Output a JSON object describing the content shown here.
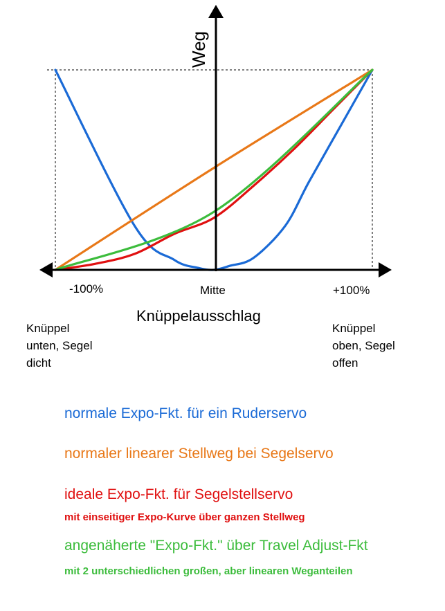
{
  "axes": {
    "y_label": "Weg",
    "x_label": "Knüppelausschlag",
    "x_min_label": "-100%",
    "x_mid_label": "Mitte",
    "x_max_label": "+100%"
  },
  "notes": {
    "left": [
      "Knüppel",
      "unten, Segel",
      "dicht"
    ],
    "right": [
      "Knüppel",
      "oben, Segel",
      "offen"
    ]
  },
  "colors": {
    "blue": "#1a6ad6",
    "orange": "#e87818",
    "red": "#e01010",
    "green": "#3cbc3c",
    "axis": "#000000"
  },
  "chart_data": {
    "type": "line",
    "xlim": [
      -100,
      100
    ],
    "ylim": [
      0,
      100
    ],
    "series": [
      {
        "color": "blue",
        "x": [
          -100,
          -50,
          -25,
          -10,
          0,
          10,
          25,
          45,
          60,
          80,
          100
        ],
        "y": [
          100,
          22,
          5,
          1,
          0,
          2,
          6,
          22,
          44,
          72,
          100
        ]
      },
      {
        "color": "orange",
        "x": [
          -100,
          0,
          100
        ],
        "y": [
          0,
          51,
          100
        ]
      },
      {
        "color": "red",
        "x": [
          -100,
          -75,
          -50,
          -25,
          0,
          25,
          50,
          75,
          100
        ],
        "y": [
          0,
          3,
          8,
          18,
          26,
          42,
          60,
          80,
          100
        ]
      },
      {
        "color": "green",
        "x": [
          -100,
          0,
          100
        ],
        "y": [
          0,
          29,
          100
        ]
      }
    ]
  },
  "legend": {
    "blue": "normale Expo-Fkt. für ein Ruderservo",
    "orange": "normaler linearer Stellweg bei Segelservo",
    "red": "ideale Expo-Fkt. für Segelstellservo",
    "red_sub": "mit einseitiger Expo-Kurve über ganzen Stellweg",
    "green": "angenäherte \"Expo-Fkt.\" über Travel Adjust-Fkt",
    "green_sub": "mit 2 unterschiedlichen großen, aber linearen Weganteilen"
  }
}
